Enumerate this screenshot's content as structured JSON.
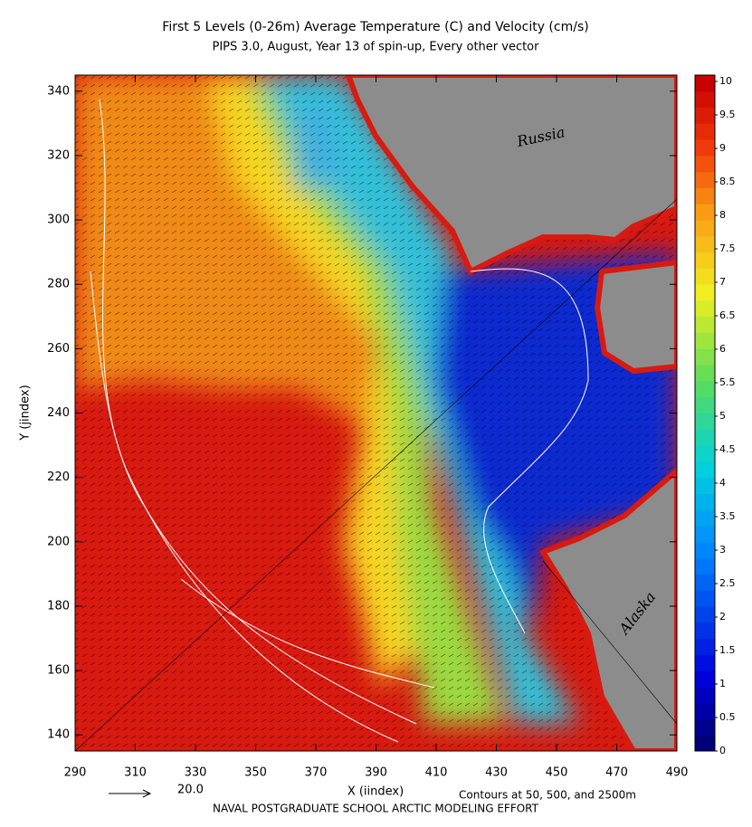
{
  "chart_data": {
    "type": "heatmap",
    "title": "First 5 Levels (0-26m) Average Temperature (C) and Velocity (cm/s)",
    "subtitle": "PIPS 3.0, August, Year 13 of spin-up, Every other vector",
    "x_label": "X (iindex)",
    "y_label": "Y (jindex)",
    "xlim": [
      290,
      490
    ],
    "xticks": [
      290,
      310,
      330,
      350,
      370,
      390,
      410,
      430,
      450,
      470,
      490
    ],
    "ylim": [
      135,
      345
    ],
    "yticks": [
      140,
      160,
      180,
      200,
      220,
      240,
      260,
      280,
      300,
      320,
      340
    ],
    "colorbar": {
      "lim": [
        0,
        10
      ],
      "ticks": [
        0,
        0.5,
        1,
        1.5,
        2,
        2.5,
        3,
        3.5,
        4,
        4.5,
        5,
        5.5,
        6,
        6.5,
        7,
        7.5,
        8,
        8.5,
        9,
        9.5,
        10
      ]
    },
    "annotations": [
      "Russia",
      "Alaska"
    ],
    "reference_vector_label": "20.0",
    "contour_note": "Contours at 50, 500, and 2500m",
    "footer": "NAVAL POSTGRADUATE SCHOOL ARCTIC MODELING EFFORT"
  }
}
